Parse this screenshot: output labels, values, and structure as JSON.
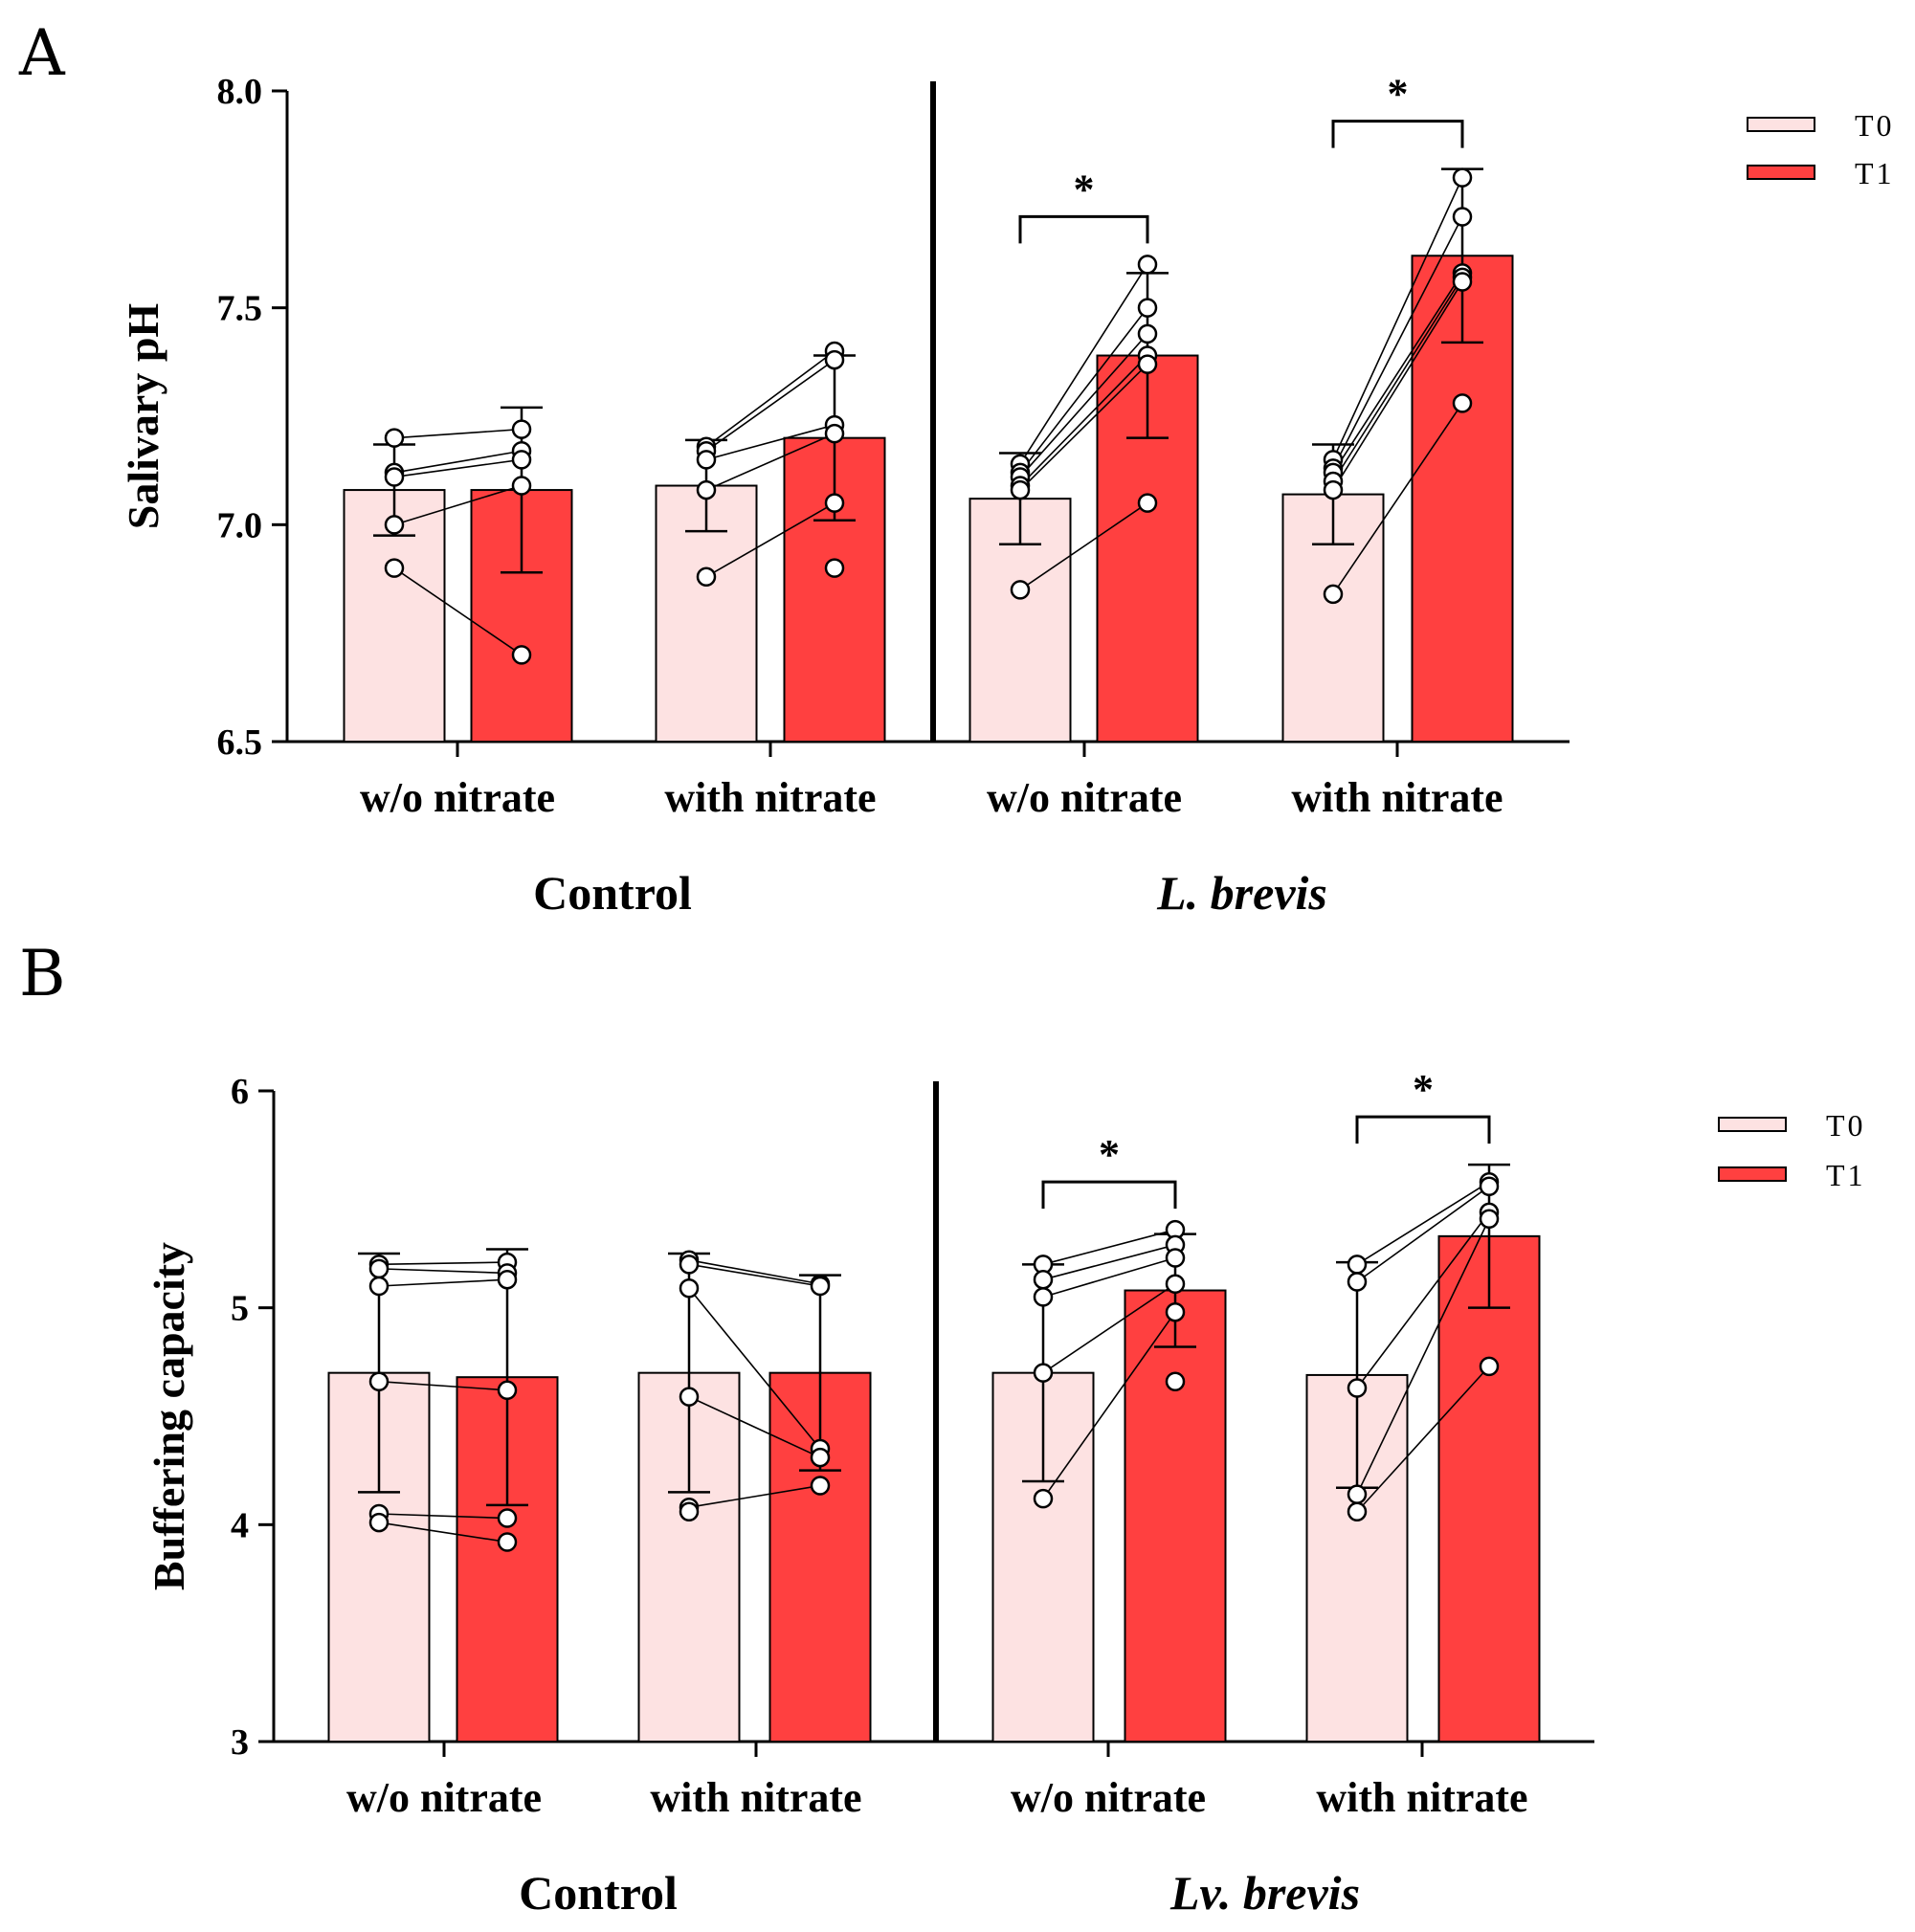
{
  "chart_data": [
    {
      "type": "bar",
      "panel": "A",
      "title": "",
      "ylabel": "Salivary pH",
      "xlabel": "",
      "ylim": [
        6.5,
        8.0
      ],
      "yticks": [
        "6.5",
        "7.0",
        "7.5",
        "8.0"
      ],
      "legend": {
        "placement": "top-right",
        "entries": [
          "T0",
          "T1"
        ]
      },
      "groups": [
        {
          "label": "Control",
          "italic": false,
          "categories": [
            {
              "label": "w/o nitrate",
              "series": [
                {
                  "name": "T0",
                  "mean": 7.08,
                  "sd": 0.105,
                  "points": [
                    7.2,
                    7.12,
                    7.11,
                    7.0,
                    6.9
                  ]
                },
                {
                  "name": "T1",
                  "mean": 7.08,
                  "sd": 0.19,
                  "points": [
                    7.22,
                    7.17,
                    7.15,
                    7.09,
                    6.7
                  ]
                }
              ],
              "significant": false
            },
            {
              "label": "with nitrate",
              "series": [
                {
                  "name": "T0",
                  "mean": 7.09,
                  "sd": 0.105,
                  "points": [
                    7.18,
                    7.17,
                    7.15,
                    7.08,
                    6.88
                  ]
                },
                {
                  "name": "T1",
                  "mean": 7.2,
                  "sd": 0.19,
                  "points": [
                    7.4,
                    7.38,
                    7.23,
                    7.21,
                    7.05,
                    6.9
                  ]
                }
              ],
              "significant": false
            }
          ]
        },
        {
          "label": "L. brevis",
          "italic": true,
          "categories": [
            {
              "label": "w/o nitrate",
              "series": [
                {
                  "name": "T0",
                  "mean": 7.06,
                  "sd": 0.105,
                  "points": [
                    7.14,
                    7.12,
                    7.11,
                    7.09,
                    7.08,
                    6.85
                  ]
                },
                {
                  "name": "T1",
                  "mean": 7.39,
                  "sd": 0.19,
                  "points": [
                    7.6,
                    7.5,
                    7.44,
                    7.39,
                    7.37,
                    7.05
                  ]
                }
              ],
              "significant": true,
              "marker": "*"
            },
            {
              "label": "with nitrate",
              "series": [
                {
                  "name": "T0",
                  "mean": 7.07,
                  "sd": 0.115,
                  "points": [
                    7.15,
                    7.13,
                    7.12,
                    7.1,
                    7.08,
                    6.84
                  ]
                },
                {
                  "name": "T1",
                  "mean": 7.62,
                  "sd": 0.2,
                  "points": [
                    7.8,
                    7.71,
                    7.58,
                    7.57,
                    7.56,
                    7.28
                  ]
                }
              ],
              "significant": true,
              "marker": "*"
            }
          ]
        }
      ]
    },
    {
      "type": "bar",
      "panel": "B",
      "title": "",
      "ylabel": "Buffering capacity",
      "xlabel": "",
      "ylim": [
        3,
        6
      ],
      "yticks": [
        "3",
        "4",
        "5",
        "6"
      ],
      "legend": {
        "placement": "top-right",
        "entries": [
          "T0",
          "T1"
        ]
      },
      "groups": [
        {
          "label": "Control",
          "italic": false,
          "categories": [
            {
              "label": "w/o nitrate",
              "series": [
                {
                  "name": "T0",
                  "mean": 4.7,
                  "sd": 0.55,
                  "points": [
                    5.2,
                    5.18,
                    5.1,
                    4.66,
                    4.05,
                    4.01
                  ]
                },
                {
                  "name": "T1",
                  "mean": 4.68,
                  "sd": 0.59,
                  "points": [
                    5.21,
                    5.16,
                    5.13,
                    4.62,
                    4.03,
                    3.92
                  ]
                }
              ],
              "significant": false
            },
            {
              "label": "with nitrate",
              "series": [
                {
                  "name": "T0",
                  "mean": 4.7,
                  "sd": 0.55,
                  "points": [
                    5.22,
                    5.2,
                    5.09,
                    4.59,
                    4.08,
                    4.06
                  ]
                },
                {
                  "name": "T1",
                  "mean": 4.7,
                  "sd": 0.45,
                  "points": [
                    5.11,
                    5.1,
                    4.35,
                    4.31,
                    4.18
                  ]
                }
              ],
              "significant": false
            }
          ]
        },
        {
          "label": "Lv. brevis",
          "italic": true,
          "categories": [
            {
              "label": "w/o nitrate",
              "series": [
                {
                  "name": "T0",
                  "mean": 4.7,
                  "sd": 0.5,
                  "points": [
                    5.2,
                    5.13,
                    5.05,
                    4.7,
                    4.12
                  ]
                },
                {
                  "name": "T1",
                  "mean": 5.08,
                  "sd": 0.26,
                  "points": [
                    5.36,
                    5.29,
                    5.23,
                    5.11,
                    4.98,
                    4.66
                  ]
                }
              ],
              "significant": true,
              "marker": "*"
            },
            {
              "label": "with nitrate",
              "series": [
                {
                  "name": "T0",
                  "mean": 4.69,
                  "sd": 0.52,
                  "points": [
                    5.2,
                    5.12,
                    4.63,
                    4.14,
                    4.06
                  ]
                },
                {
                  "name": "T1",
                  "mean": 5.33,
                  "sd": 0.33,
                  "points": [
                    5.58,
                    5.56,
                    5.44,
                    5.41,
                    4.73
                  ]
                }
              ],
              "significant": true,
              "marker": "*"
            }
          ]
        }
      ]
    }
  ],
  "colors": {
    "t0_fill": "#fde2e2",
    "t1_fill": "#ff4040",
    "stroke": "#000000",
    "point_fill": "#ffffff"
  }
}
